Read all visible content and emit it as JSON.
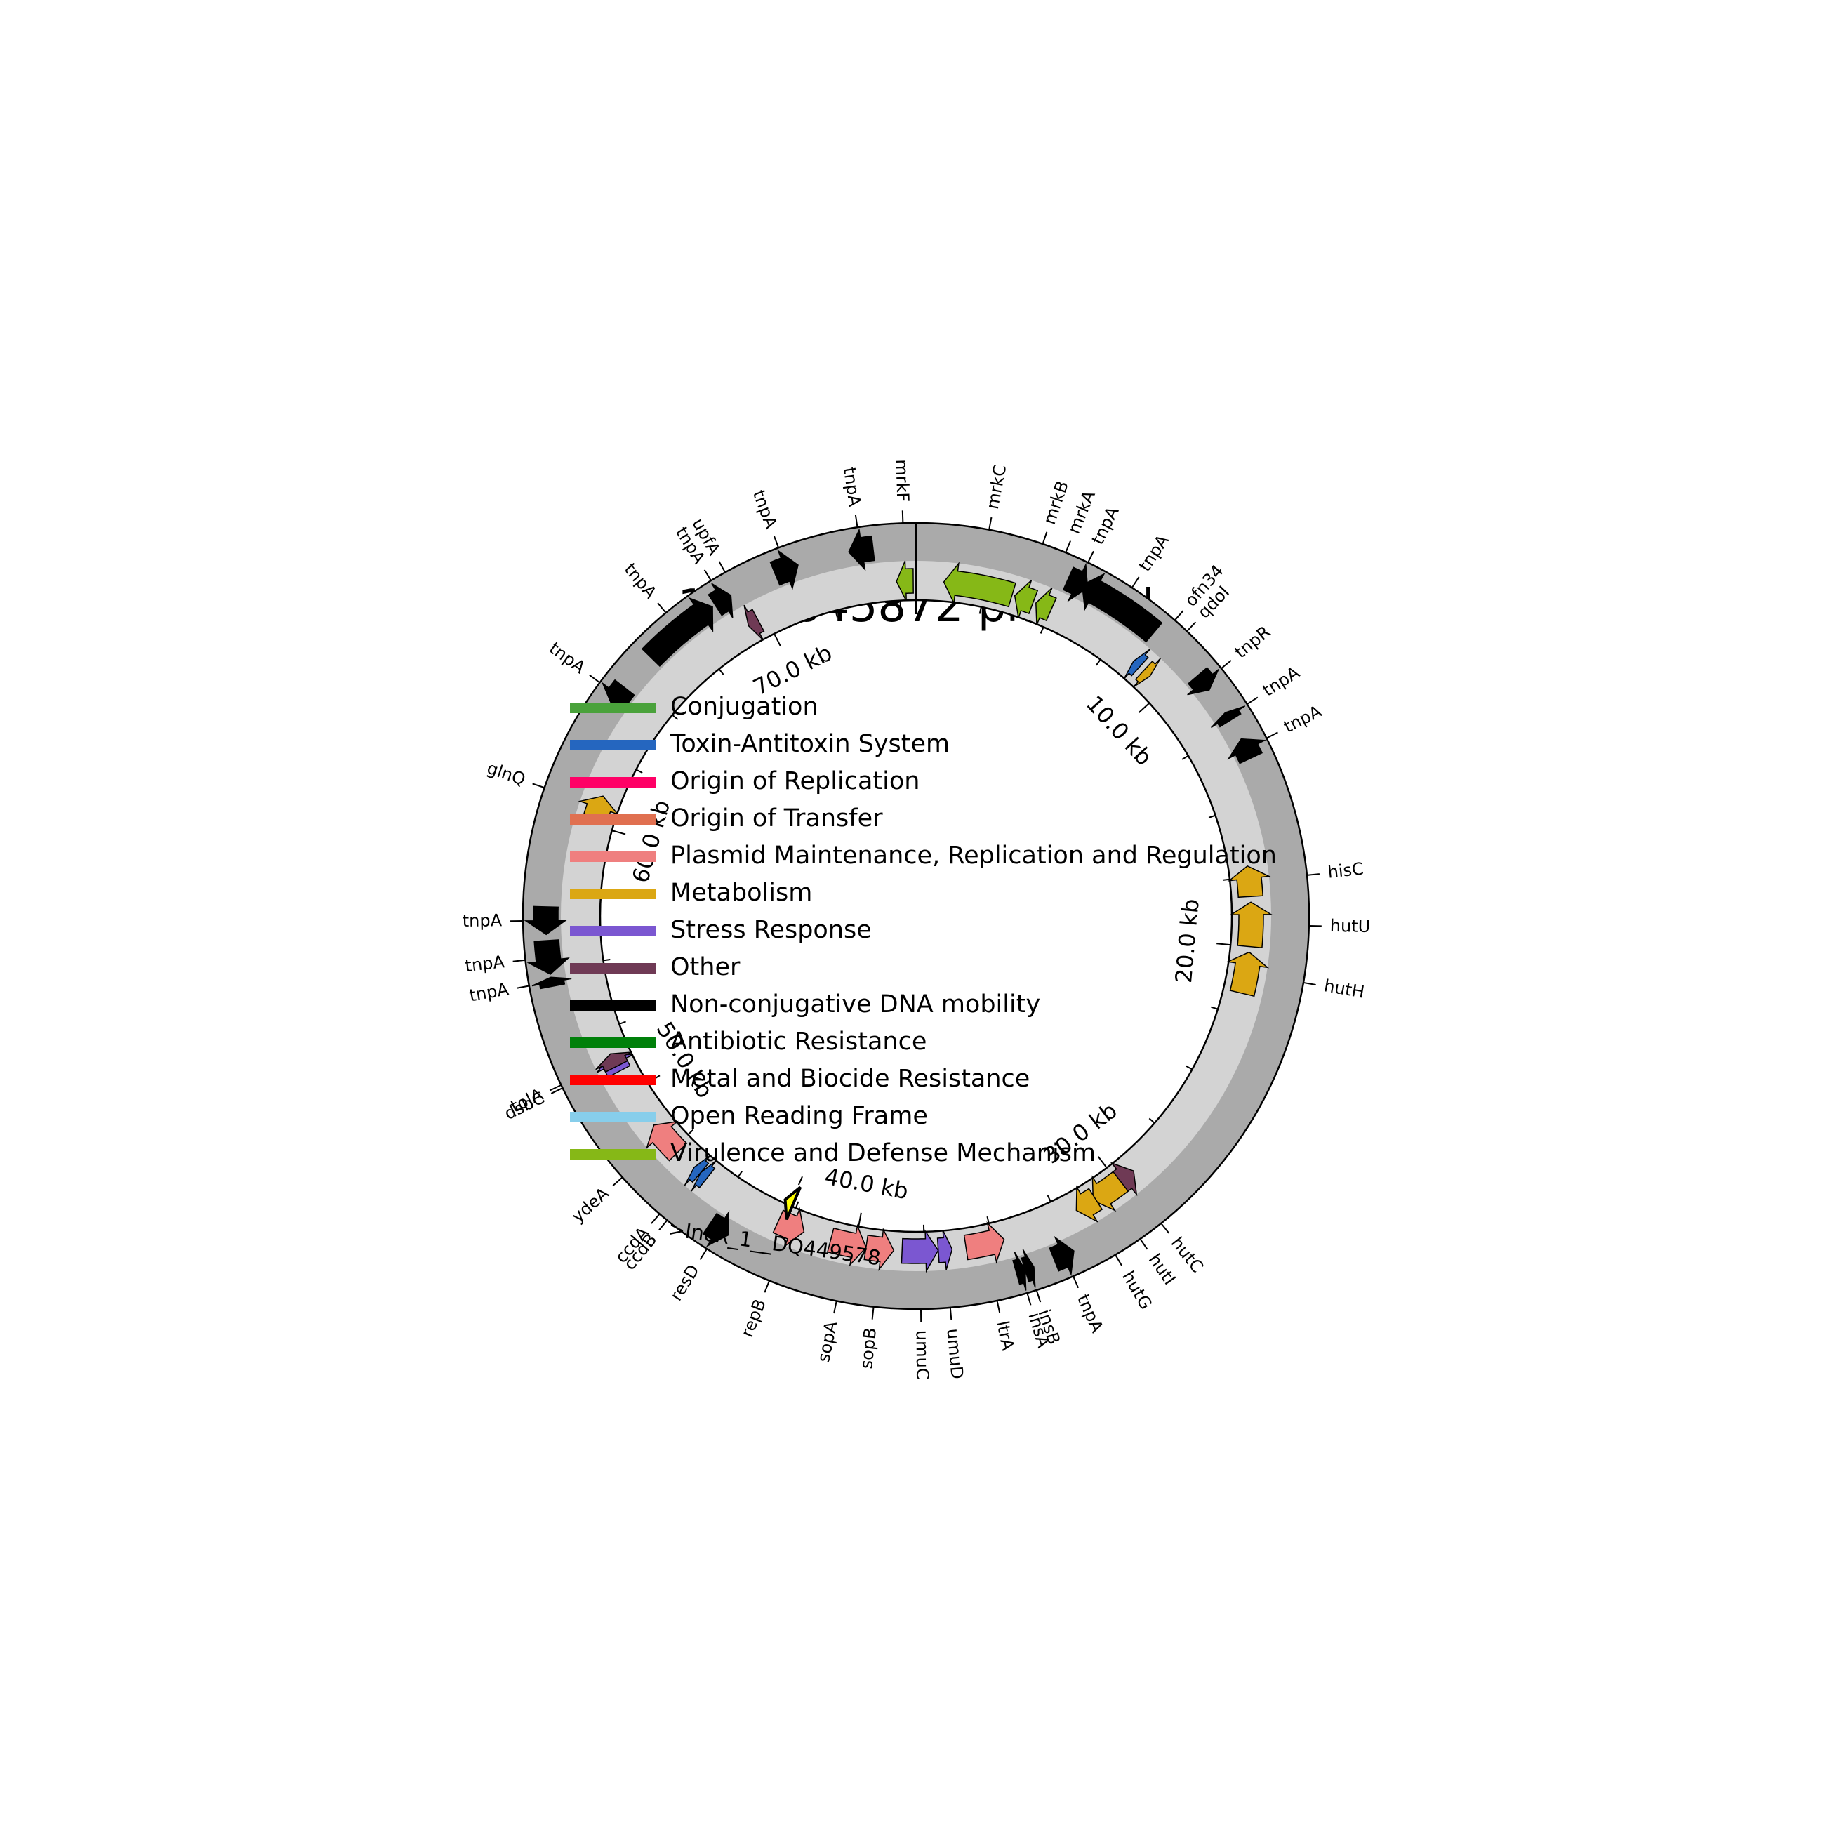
{
  "title": "1344845872 plasmid",
  "plasmid_length_kb": 75.6,
  "coordinate_labels": [
    {
      "label": "10.0 kb",
      "pos_kb": 10.0
    },
    {
      "label": "20.0 kb",
      "pos_kb": 20.0
    },
    {
      "label": "30.0 kb",
      "pos_kb": 30.0
    },
    {
      "label": "40.0 kb",
      "pos_kb": 40.0
    },
    {
      "label": "50.0 kb",
      "pos_kb": 50.0
    },
    {
      "label": "60.0 kb",
      "pos_kb": 60.0
    },
    {
      "label": "70.0 kb",
      "pos_kb": 70.0
    }
  ],
  "legend": [
    {
      "label": "Conjugation",
      "color": "#4aa23b"
    },
    {
      "label": "Toxin-Antitoxin System",
      "color": "#2566bf"
    },
    {
      "label": "Origin of Replication",
      "color": "#ff0066"
    },
    {
      "label": "Origin of Transfer",
      "color": "#e07050"
    },
    {
      "label": "Plasmid Maintenance, Replication and Regulation",
      "color": "#ef7f7f"
    },
    {
      "label": "Metabolism",
      "color": "#dba713"
    },
    {
      "label": "Stress Response",
      "color": "#7b57d1"
    },
    {
      "label": "Other",
      "color": "#6f3a55"
    },
    {
      "label": "Non-conjugative DNA mobility",
      "color": "#000000"
    },
    {
      "label": "Antibiotic Resistance",
      "color": "#00800a"
    },
    {
      "label": "Metal and Biocide Resistance",
      "color": "#ff0000"
    },
    {
      "label": "Open Reading Frame",
      "color": "#87ceeb"
    },
    {
      "label": "Virulence and Defense Mechanism",
      "color": "#86b817"
    }
  ],
  "replicon": {
    "label": ">IncR_1__DQ449578",
    "pos_kb": 42.7,
    "color": "#ffff00"
  },
  "features": [
    {
      "name": "mrkF",
      "category": "Virulence and Defense Mechanism",
      "start_kb": 74.9,
      "end_kb": 75.5,
      "strand": -1
    },
    {
      "name": "mrkC",
      "category": "Virulence and Defense Mechanism",
      "start_kb": 1.0,
      "end_kb": 3.5,
      "strand": -1
    },
    {
      "name": "mrkB",
      "category": "Virulence and Defense Mechanism",
      "start_kb": 3.6,
      "end_kb": 4.3,
      "strand": -1
    },
    {
      "name": "mrkA",
      "category": "Virulence and Defense Mechanism",
      "start_kb": 4.4,
      "end_kb": 5.0,
      "strand": -1
    },
    {
      "name": "tnpA",
      "category": "Non-conjugative DNA mobility",
      "start_kb": 5.1,
      "end_kb": 5.8,
      "strand": 1
    },
    {
      "name": "tnpA",
      "category": "Non-conjugative DNA mobility",
      "start_kb": 5.6,
      "end_kb": 8.4,
      "strand": -1
    },
    {
      "name": "ofn34",
      "category": "Toxin-Antitoxin System",
      "start_kb": 8.5,
      "end_kb": 8.8,
      "strand": -1
    },
    {
      "name": "qdoI",
      "category": "Metabolism",
      "start_kb": 9.0,
      "end_kb": 9.3,
      "strand": 1
    },
    {
      "name": "tnpR",
      "category": "Non-conjugative DNA mobility",
      "start_kb": 10.4,
      "end_kb": 11.0,
      "strand": 1
    },
    {
      "name": "tnpA",
      "category": "Non-conjugative DNA mobility",
      "start_kb": 11.9,
      "end_kb": 12.2,
      "strand": -1
    },
    {
      "name": "tnpA",
      "category": "Non-conjugative DNA mobility",
      "start_kb": 12.9,
      "end_kb": 13.6,
      "strand": -1
    },
    {
      "name": "hisC",
      "category": "Metabolism",
      "start_kb": 17.1,
      "end_kb": 18.2,
      "strand": -1
    },
    {
      "name": "hutU",
      "category": "Metabolism",
      "start_kb": 18.4,
      "end_kb": 20.0,
      "strand": -1
    },
    {
      "name": "hutH",
      "category": "Metabolism",
      "start_kb": 20.2,
      "end_kb": 21.7,
      "strand": -1
    },
    {
      "name": "hutC",
      "category": "Other",
      "start_kb": 29.3,
      "end_kb": 30.1,
      "strand": -1
    },
    {
      "name": "hutI",
      "category": "Metabolism",
      "start_kb": 29.9,
      "end_kb": 31.1,
      "strand": 1
    },
    {
      "name": "hutG",
      "category": "Metabolism",
      "start_kb": 31.0,
      "end_kb": 31.8,
      "strand": 1
    },
    {
      "name": "tnpA",
      "category": "Non-conjugative DNA mobility",
      "start_kb": 32.5,
      "end_kb": 33.2,
      "strand": -1
    },
    {
      "name": "insB",
      "category": "Non-conjugative DNA mobility",
      "start_kb": 33.9,
      "end_kb": 34.2,
      "strand": -1
    },
    {
      "name": "insA",
      "category": "Non-conjugative DNA mobility",
      "start_kb": 34.2,
      "end_kb": 34.5,
      "strand": -1
    },
    {
      "name": "ltrA",
      "category": "Plasmid Maintenance, Replication and Regulation",
      "start_kb": 34.6,
      "end_kb": 36.0,
      "strand": -1
    },
    {
      "name": "umuD",
      "category": "Stress Response",
      "start_kb": 36.5,
      "end_kb": 37.0,
      "strand": -1
    },
    {
      "name": "umuC",
      "category": "Stress Response",
      "start_kb": 37.0,
      "end_kb": 38.3,
      "strand": -1
    },
    {
      "name": "sopB",
      "category": "Plasmid Maintenance, Replication and Regulation",
      "start_kb": 38.6,
      "end_kb": 39.6,
      "strand": -1
    },
    {
      "name": "sopA",
      "category": "Plasmid Maintenance, Replication and Regulation",
      "start_kb": 39.6,
      "end_kb": 40.9,
      "strand": -1
    },
    {
      "name": "repB",
      "category": "Plasmid Maintenance, Replication and Regulation",
      "start_kb": 41.9,
      "end_kb": 42.9,
      "strand": -1
    },
    {
      "name": "resD",
      "category": "Non-conjugative DNA mobility",
      "start_kb": 44.2,
      "end_kb": 44.9,
      "strand": -1
    },
    {
      "name": "ccdB",
      "category": "Toxin-Antitoxin System",
      "start_kb": 45.9,
      "end_kb": 46.2,
      "strand": 1
    },
    {
      "name": "ccdA",
      "category": "Toxin-Antitoxin System",
      "start_kb": 46.2,
      "end_kb": 46.5,
      "strand": 1
    },
    {
      "name": "ydeA",
      "category": "Plasmid Maintenance, Replication and Regulation",
      "start_kb": 47.3,
      "end_kb": 48.6,
      "strand": 1
    },
    {
      "name": "dsbC",
      "category": "Stress Response",
      "start_kb": 50.9,
      "end_kb": 51.6,
      "strand": 1
    },
    {
      "name": "tolA",
      "category": "Other",
      "start_kb": 51.1,
      "end_kb": 51.6,
      "strand": 1
    },
    {
      "name": "tnpA",
      "category": "Non-conjugative DNA mobility",
      "start_kb": 54.4,
      "end_kb": 54.7,
      "strand": 1
    },
    {
      "name": "tnpA",
      "category": "Non-conjugative DNA mobility",
      "start_kb": 54.8,
      "end_kb": 55.9,
      "strand": -1
    },
    {
      "name": "tnpA",
      "category": "Non-conjugative DNA mobility",
      "start_kb": 56.1,
      "end_kb": 57.0,
      "strand": -1
    },
    {
      "name": "glnQ",
      "category": "Metabolism",
      "start_kb": 60.3,
      "end_kb": 61.1,
      "strand": 1
    },
    {
      "name": "tnpA",
      "category": "Non-conjugative DNA mobility",
      "start_kb": 64.0,
      "end_kb": 64.7,
      "strand": -1
    },
    {
      "name": "tnpA",
      "category": "Non-conjugative DNA mobility",
      "start_kb": 66.0,
      "end_kb": 68.6,
      "strand": 1
    },
    {
      "name": "tnpA",
      "category": "Non-conjugative DNA mobility",
      "start_kb": 68.7,
      "end_kb": 69.3,
      "strand": 1
    },
    {
      "name": "upfA",
      "category": "Other",
      "start_kb": 69.3,
      "end_kb": 69.7,
      "strand": -1
    },
    {
      "name": "tnpA",
      "category": "Non-conjugative DNA mobility",
      "start_kb": 70.9,
      "end_kb": 71.7,
      "strand": 1
    },
    {
      "name": "tnpA",
      "category": "Non-conjugative DNA mobility",
      "start_kb": 73.4,
      "end_kb": 74.2,
      "strand": -1
    }
  ]
}
